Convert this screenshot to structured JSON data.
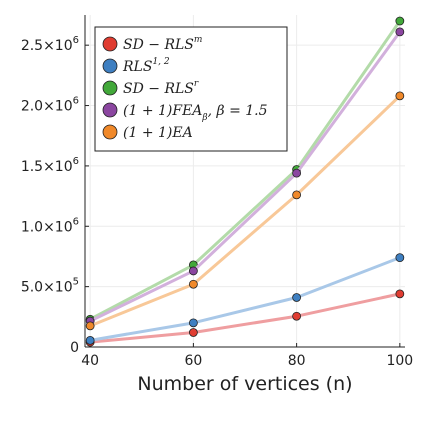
{
  "chart_data": {
    "type": "line",
    "title": "",
    "xlabel": "Number of vertices (n)",
    "ylabel": "",
    "x": [
      40,
      60,
      80,
      100
    ],
    "xlim": [
      39,
      101
    ],
    "ylim": [
      0,
      2750000
    ],
    "xticks": [
      40,
      60,
      80,
      100
    ],
    "xtick_labels": [
      "40",
      "60",
      "80",
      "100"
    ],
    "yticks": [
      0,
      500000,
      1000000,
      1500000,
      2000000,
      2500000
    ],
    "ytick_labels": [
      {
        "mantissa": "0",
        "exp": ""
      },
      {
        "mantissa": "5.0×10",
        "exp": "5"
      },
      {
        "mantissa": "1.0×10",
        "exp": "6"
      },
      {
        "mantissa": "1.5×10",
        "exp": "6"
      },
      {
        "mantissa": "2.0×10",
        "exp": "6"
      },
      {
        "mantissa": "2.5×10",
        "exp": "6"
      }
    ],
    "grid": true,
    "legend_position": "top-left",
    "series": [
      {
        "name": "SD − RLS",
        "sup": "m",
        "sub": "",
        "tail": "",
        "color": "#e03c31",
        "line_color": "#ef9ea0",
        "values": [
          40000,
          120000,
          255000,
          440000
        ]
      },
      {
        "name": "RLS",
        "sup": "1, 2",
        "sub": "",
        "tail": "",
        "color": "#3e7fc1",
        "line_color": "#a9c8e8",
        "values": [
          55000,
          200000,
          410000,
          740000
        ]
      },
      {
        "name": "SD − RLS",
        "sup": "r",
        "sub": "",
        "tail": "",
        "color": "#42a83a",
        "line_color": "#b3dba9",
        "values": [
          230000,
          680000,
          1470000,
          2700000
        ]
      },
      {
        "name": "(1 + 1)FEA",
        "sup": "",
        "sub": "β",
        "tail": ", β = 1.5",
        "color": "#8b46a0",
        "line_color": "#d2b0dc",
        "values": [
          215000,
          630000,
          1440000,
          2610000
        ]
      },
      {
        "name": "(1 + 1)EA",
        "sup": "",
        "sub": "",
        "tail": "",
        "color": "#f0892a",
        "line_color": "#f8c898",
        "values": [
          175000,
          520000,
          1260000,
          2080000
        ]
      }
    ]
  }
}
